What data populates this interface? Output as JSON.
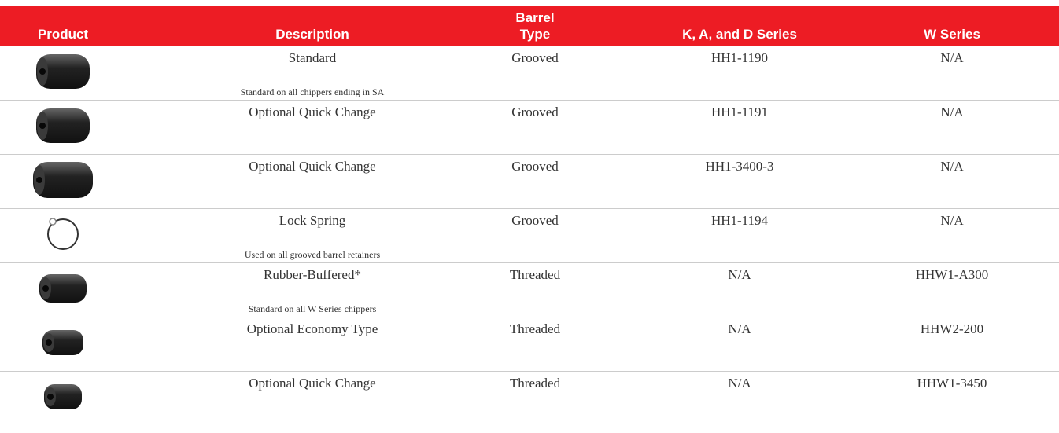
{
  "table": {
    "headers": [
      "Product",
      "Description",
      "Barrel Type",
      "K, A, and D Series",
      "W Series"
    ],
    "rows": [
      {
        "description": "Standard",
        "note": "Standard on all chippers ending in SA",
        "barrel_type": "Grooved",
        "kad_series": "HH1-1190",
        "w_series": "N/A"
      },
      {
        "description": "Optional Quick Change",
        "barrel_type": "Grooved",
        "kad_series": "HH1-1191",
        "w_series": "N/A"
      },
      {
        "description": "Optional Quick Change",
        "barrel_type": "Grooved",
        "kad_series": "HH1-3400-3",
        "w_series": "N/A"
      },
      {
        "description": "Lock Spring",
        "note": "Used on all grooved barrel retainers",
        "barrel_type": "Grooved",
        "kad_series": "HH1-1194",
        "w_series": "N/A"
      },
      {
        "description": "Rubber-Buffered*",
        "note": "Standard on all W Series chippers",
        "barrel_type": "Threaded",
        "kad_series": "N/A",
        "w_series": "HHW1-A300"
      },
      {
        "description": "Optional Economy Type",
        "barrel_type": "Threaded",
        "kad_series": "N/A",
        "w_series": "HHW2-200"
      },
      {
        "description": "Optional Quick Change",
        "barrel_type": "Threaded",
        "kad_series": "N/A",
        "w_series": "HHW1-3450"
      }
    ]
  }
}
